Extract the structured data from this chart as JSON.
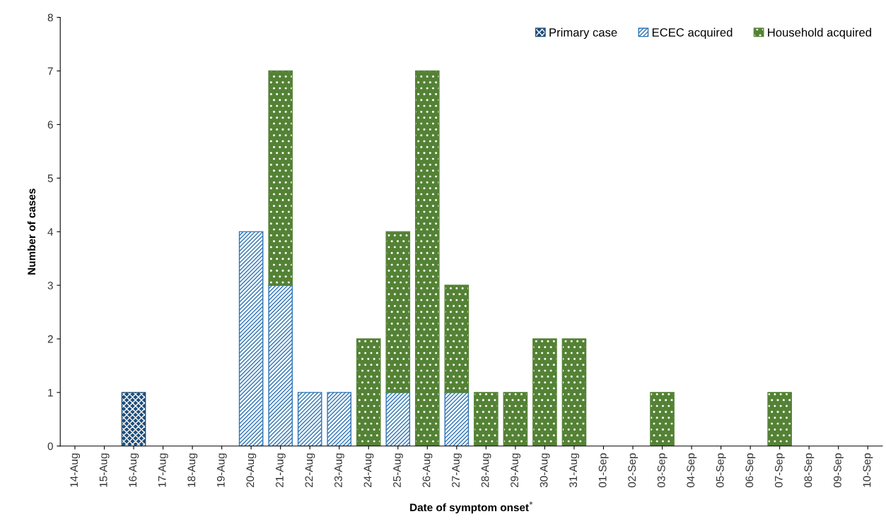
{
  "chart_data": {
    "type": "bar",
    "stacked": true,
    "xlabel": "Date of symptom onset$^{*}$",
    "ylabel": "Number of cases",
    "categories": [
      "14-Aug",
      "15-Aug",
      "16-Aug",
      "17-Aug",
      "18-Aug",
      "19-Aug",
      "20-Aug",
      "21-Aug",
      "22-Aug",
      "23-Aug",
      "24-Aug",
      "25-Aug",
      "26-Aug",
      "27-Aug",
      "28-Aug",
      "29-Aug",
      "30-Aug",
      "31-Aug",
      "01-Sep",
      "02-Sep",
      "03-Sep",
      "04-Sep",
      "05-Sep",
      "06-Sep",
      "07-Sep",
      "08-Sep",
      "09-Sep",
      "10-Sep"
    ],
    "series": [
      {
        "name": "Primary case",
        "color": "#1f4e79",
        "values": [
          0,
          0,
          1,
          0,
          0,
          0,
          0,
          0,
          0,
          0,
          0,
          0,
          0,
          0,
          0,
          0,
          0,
          0,
          0,
          0,
          0,
          0,
          0,
          0,
          0,
          0,
          0,
          0
        ]
      },
      {
        "name": "ECEC acquired",
        "color": "#2e75b6",
        "values": [
          0,
          0,
          0,
          0,
          0,
          0,
          4,
          3,
          1,
          1,
          0,
          1,
          0,
          1,
          0,
          0,
          0,
          0,
          0,
          0,
          0,
          0,
          0,
          0,
          0,
          0,
          0,
          0
        ]
      },
      {
        "name": "Household acquired",
        "color": "#548235",
        "values": [
          0,
          0,
          0,
          0,
          0,
          0,
          0,
          4,
          0,
          0,
          2,
          3,
          7,
          2,
          1,
          1,
          2,
          2,
          0,
          0,
          1,
          0,
          0,
          0,
          1,
          0,
          0,
          0
        ]
      }
    ],
    "ylim": [
      0,
      8
    ],
    "yticks": [
      0,
      1,
      2,
      3,
      4,
      5,
      6,
      7,
      8
    ],
    "grid": false,
    "legend": "top right"
  }
}
